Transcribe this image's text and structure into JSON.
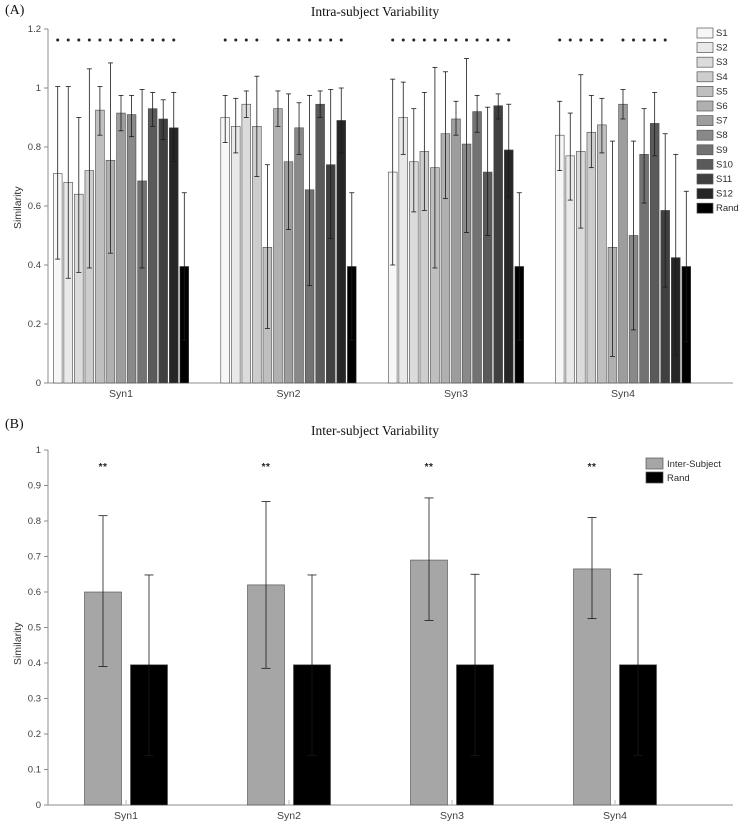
{
  "panel_a": {
    "letter": "(A)",
    "title": "Intra-subject Variability",
    "ylabel": "Similarity"
  },
  "panel_b": {
    "letter": "(B)",
    "title": "Inter-subject Variability",
    "ylabel": "Similarity"
  },
  "chart_data": [
    {
      "id": "chart-a",
      "type": "bar",
      "title": "Intra-subject Variability",
      "ylabel": "Similarity",
      "ylim": [
        0,
        1.2
      ],
      "yticks": [
        0,
        0.2,
        0.4,
        0.6,
        0.8,
        1,
        1.2
      ],
      "ytick_labels": [
        "0",
        "0.2",
        "0.4",
        "0.6",
        "0.8",
        "1",
        "1.2"
      ],
      "categories": [
        "Syn1",
        "Syn2",
        "Syn3",
        "Syn4"
      ],
      "grid": false,
      "legend_position": "upper right",
      "sig_marker": "dot",
      "series": [
        {
          "name": "S1",
          "color": "#f7f7f7",
          "values": [
            0.71,
            0.9,
            0.715,
            0.84
          ],
          "err_lo": [
            0.42,
            0.815,
            0.4,
            0.72
          ],
          "err_hi": [
            1.005,
            0.975,
            1.03,
            0.955
          ],
          "sig": [
            1,
            1,
            1,
            1
          ]
        },
        {
          "name": "S2",
          "color": "#e9e9e9",
          "values": [
            0.68,
            0.87,
            0.9,
            0.77
          ],
          "err_lo": [
            0.355,
            0.78,
            0.775,
            0.62
          ],
          "err_hi": [
            1.005,
            0.965,
            1.02,
            0.915
          ],
          "sig": [
            1,
            1,
            1,
            1
          ]
        },
        {
          "name": "S3",
          "color": "#dbdbdb",
          "values": [
            0.64,
            0.945,
            0.75,
            0.785
          ],
          "err_lo": [
            0.375,
            0.9,
            0.58,
            0.525
          ],
          "err_hi": [
            0.9,
            0.99,
            0.93,
            1.045
          ],
          "sig": [
            1,
            1,
            1,
            1
          ]
        },
        {
          "name": "S4",
          "color": "#cdcdcd",
          "values": [
            0.72,
            0.87,
            0.785,
            0.85
          ],
          "err_lo": [
            0.39,
            0.7,
            0.585,
            0.73
          ],
          "err_hi": [
            1.065,
            1.04,
            0.985,
            0.975
          ],
          "sig": [
            1,
            1,
            1,
            1
          ]
        },
        {
          "name": "S5",
          "color": "#bfbfbf",
          "values": [
            0.925,
            0.46,
            0.73,
            0.875
          ],
          "err_lo": [
            0.84,
            0.185,
            0.39,
            0.78
          ],
          "err_hi": [
            1.005,
            0.74,
            1.07,
            0.965
          ],
          "sig": [
            1,
            0,
            1,
            1
          ]
        },
        {
          "name": "S6",
          "color": "#b0b0b0",
          "values": [
            0.755,
            0.93,
            0.845,
            0.46
          ],
          "err_lo": [
            0.44,
            0.87,
            0.625,
            0.09
          ],
          "err_hi": [
            1.085,
            0.99,
            1.055,
            0.82
          ],
          "sig": [
            1,
            1,
            1,
            0
          ]
        },
        {
          "name": "S7",
          "color": "#9d9d9d",
          "values": [
            0.915,
            0.75,
            0.895,
            0.945
          ],
          "err_lo": [
            0.855,
            0.52,
            0.84,
            0.895
          ],
          "err_hi": [
            0.975,
            0.98,
            0.955,
            0.995
          ],
          "sig": [
            1,
            1,
            1,
            1
          ]
        },
        {
          "name": "S8",
          "color": "#898989",
          "values": [
            0.91,
            0.865,
            0.81,
            0.5
          ],
          "err_lo": [
            0.835,
            0.775,
            0.51,
            0.18
          ],
          "err_hi": [
            0.975,
            0.95,
            1.1,
            0.82
          ],
          "sig": [
            1,
            1,
            1,
            1
          ]
        },
        {
          "name": "S9",
          "color": "#727272",
          "values": [
            0.685,
            0.655,
            0.92,
            0.775
          ],
          "err_lo": [
            0.39,
            0.33,
            0.85,
            0.61
          ],
          "err_hi": [
            0.995,
            0.975,
            0.975,
            0.93
          ],
          "sig": [
            1,
            1,
            1,
            1
          ]
        },
        {
          "name": "S10",
          "color": "#5a5a5a",
          "values": [
            0.93,
            0.945,
            0.715,
            0.88
          ],
          "err_lo": [
            0.87,
            0.9,
            0.5,
            0.77
          ],
          "err_hi": [
            0.985,
            0.99,
            0.935,
            0.985
          ],
          "sig": [
            1,
            1,
            1,
            1
          ]
        },
        {
          "name": "S11",
          "color": "#404040",
          "values": [
            0.895,
            0.74,
            0.94,
            0.585
          ],
          "err_lo": [
            0.825,
            0.49,
            0.895,
            0.325
          ],
          "err_hi": [
            0.96,
            0.995,
            0.98,
            0.845
          ],
          "sig": [
            1,
            1,
            1,
            1
          ]
        },
        {
          "name": "S12",
          "color": "#262626",
          "values": [
            0.865,
            0.89,
            0.79,
            0.425
          ],
          "err_lo": [
            0.75,
            0.78,
            0.63,
            0.095
          ],
          "err_hi": [
            0.985,
            1.0,
            0.945,
            0.775
          ],
          "sig": [
            1,
            1,
            1,
            0
          ]
        },
        {
          "name": "Rand",
          "color": "#000000",
          "values": [
            0.395,
            0.395,
            0.395,
            0.395
          ],
          "err_lo": [
            0.145,
            0.145,
            0.145,
            0.14
          ],
          "err_hi": [
            0.645,
            0.645,
            0.645,
            0.65
          ],
          "sig": [
            0,
            0,
            0,
            0
          ]
        }
      ]
    },
    {
      "id": "chart-b",
      "type": "bar",
      "title": "Inter-subject Variability",
      "ylabel": "Similarity",
      "ylim": [
        0,
        1
      ],
      "yticks": [
        0,
        0.1,
        0.2,
        0.3,
        0.4,
        0.5,
        0.6,
        0.7,
        0.8,
        0.9,
        1
      ],
      "ytick_labels": [
        "0",
        "0.1",
        "0.2",
        "0.3",
        "0.4",
        "0.5",
        "0.6",
        "0.7",
        "0.8",
        "0.9",
        "1"
      ],
      "categories": [
        "Syn1",
        "Syn2",
        "Syn3",
        "Syn4"
      ],
      "grid": false,
      "legend_position": "upper right",
      "sig_marker": "**",
      "series": [
        {
          "name": "Inter-Subject",
          "color": "#a6a6a6",
          "values": [
            0.6,
            0.62,
            0.69,
            0.665
          ],
          "err_lo": [
            0.39,
            0.385,
            0.52,
            0.525
          ],
          "err_hi": [
            0.815,
            0.855,
            0.865,
            0.81
          ],
          "sig": [
            1,
            1,
            1,
            1
          ]
        },
        {
          "name": "Rand",
          "color": "#000000",
          "values": [
            0.395,
            0.395,
            0.395,
            0.395
          ],
          "err_lo": [
            0.14,
            0.14,
            0.14,
            0.14
          ],
          "err_hi": [
            0.648,
            0.648,
            0.65,
            0.65
          ],
          "sig": [
            0,
            0,
            0,
            0
          ]
        }
      ]
    }
  ]
}
